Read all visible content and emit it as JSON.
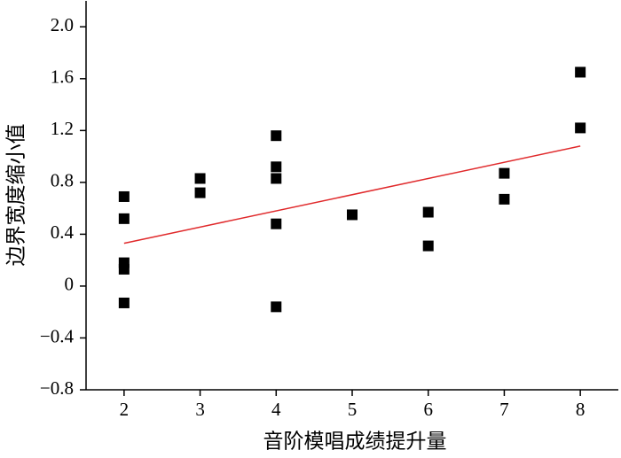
{
  "chart_data": {
    "type": "scatter",
    "xlabel": "音阶模唱成绩提升量",
    "ylabel": "边界宽度缩小值",
    "xlim": [
      1.5,
      8.5
    ],
    "xticks": [
      2,
      3,
      4,
      5,
      6,
      7,
      8
    ],
    "ylim": [
      -0.8,
      2.2
    ],
    "yticks": [
      {
        "value": -0.8,
        "label": "−0.8"
      },
      {
        "value": -0.4,
        "label": "−0.4"
      },
      0,
      0.4,
      0.8,
      1.2,
      1.6,
      {
        "value": 2,
        "label": "2.0"
      }
    ],
    "points": {
      "color": "#000000",
      "x": [
        2,
        2,
        2,
        2,
        2,
        3,
        3,
        4,
        4,
        4,
        4,
        4,
        5,
        6,
        6,
        7,
        7,
        8,
        8
      ],
      "y": [
        0.69,
        0.52,
        0.18,
        0.13,
        -0.13,
        0.83,
        0.72,
        1.16,
        0.92,
        0.83,
        0.48,
        -0.16,
        0.55,
        0.57,
        0.31,
        0.87,
        0.67,
        1.65,
        1.22
      ]
    },
    "fit_line": {
      "color": "#e0292b",
      "x": [
        2,
        8
      ],
      "y": [
        0.33,
        1.08
      ]
    }
  }
}
